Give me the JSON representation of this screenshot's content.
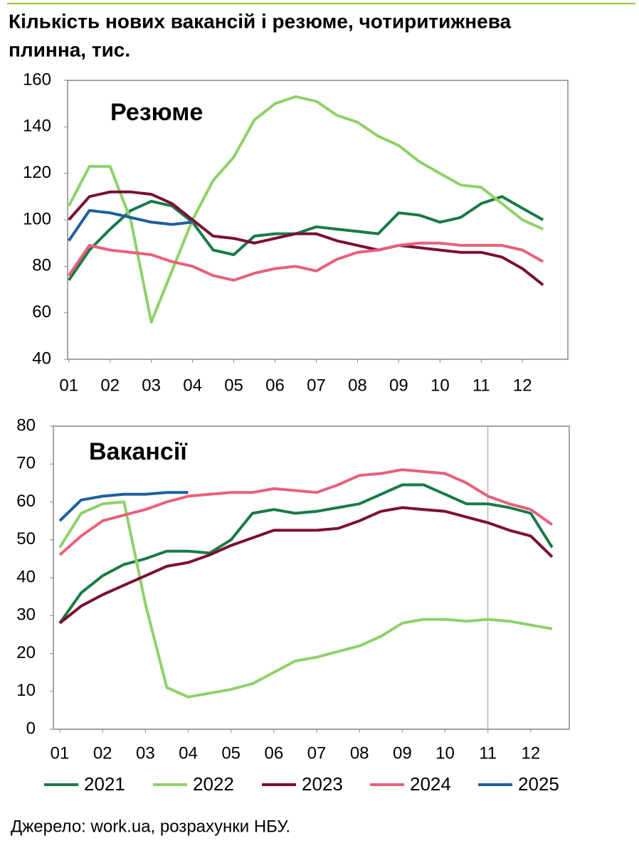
{
  "title_lines": [
    "Кількість нових вакансій і резюме, чотиритижнева",
    "плинна, тис."
  ],
  "source": "Джерело: work.ua, розрахунки НБУ.",
  "chart_data": [
    {
      "type": "line",
      "label": "Резюме",
      "x": [
        1,
        1.5,
        2,
        2.5,
        3,
        3.5,
        4,
        4.5,
        5,
        5.5,
        6,
        6.5,
        7,
        7.5,
        8,
        8.5,
        9,
        9.5,
        10,
        10.5,
        11,
        11.5,
        12,
        12.5
      ],
      "xlim": [
        0.97,
        13.1
      ],
      "xticks": [
        {
          "value": 1,
          "label": "01"
        },
        {
          "value": 2,
          "label": "02"
        },
        {
          "value": 3,
          "label": "03"
        },
        {
          "value": 4,
          "label": "04"
        },
        {
          "value": 5,
          "label": "05"
        },
        {
          "value": 6,
          "label": "06"
        },
        {
          "value": 7,
          "label": "07"
        },
        {
          "value": 8,
          "label": "08"
        },
        {
          "value": 9,
          "label": "09"
        },
        {
          "value": 10,
          "label": "10"
        },
        {
          "value": 11,
          "label": "11"
        },
        {
          "value": 12,
          "label": "12"
        }
      ],
      "ylim": [
        40,
        160
      ],
      "yticks": [
        40,
        60,
        80,
        100,
        120,
        140,
        160
      ],
      "series": [
        {
          "name": "2021",
          "color": "#1a7a45",
          "values": [
            74,
            87,
            96,
            104,
            108,
            106,
            99,
            87,
            85,
            93,
            94,
            94,
            97,
            96,
            95,
            94,
            103,
            102,
            99,
            101,
            107,
            110,
            105,
            100
          ]
        },
        {
          "name": "2022",
          "color": "#8fd16a",
          "values": [
            106,
            123,
            123,
            100,
            56,
            78,
            100,
            117,
            127,
            143,
            150,
            153,
            151,
            145,
            142,
            136,
            132,
            125,
            120,
            115,
            114,
            107,
            100,
            96
          ]
        },
        {
          "name": "2023",
          "color": "#7a0f35",
          "values": [
            100,
            110,
            112,
            112,
            111,
            107,
            100,
            93,
            92,
            90,
            92,
            94,
            94,
            91,
            89,
            87,
            89,
            88,
            87,
            86,
            86,
            84,
            79,
            72
          ]
        },
        {
          "name": "2024",
          "color": "#e8607a",
          "values": [
            76,
            89,
            87,
            86,
            85,
            82,
            80,
            76,
            74,
            77,
            79,
            80,
            78,
            83,
            86,
            87,
            89,
            90,
            90,
            89,
            89,
            89,
            87,
            82
          ]
        },
        {
          "name": "2025",
          "color": "#1f5f9e",
          "values": [
            91,
            104,
            103,
            101,
            99,
            98,
            99,
            null,
            null,
            null,
            null,
            null,
            null,
            null,
            null,
            null,
            null,
            null,
            null,
            null,
            null,
            null,
            null,
            null
          ]
        }
      ]
    },
    {
      "type": "line",
      "label": "Вакансії",
      "x": [
        1,
        1.5,
        2,
        2.5,
        3,
        3.5,
        4,
        4.5,
        5,
        5.5,
        6,
        6.5,
        7,
        7.5,
        8,
        8.5,
        9,
        9.5,
        10,
        10.5,
        11,
        11.5,
        12,
        12.5
      ],
      "xlim": [
        0.85,
        12.9
      ],
      "xticks": [
        {
          "value": 1,
          "label": "01"
        },
        {
          "value": 2,
          "label": "02"
        },
        {
          "value": 3,
          "label": "03"
        },
        {
          "value": 4,
          "label": "04"
        },
        {
          "value": 5,
          "label": "05"
        },
        {
          "value": 6,
          "label": "06"
        },
        {
          "value": 7,
          "label": "07"
        },
        {
          "value": 8,
          "label": "08"
        },
        {
          "value": 9,
          "label": "09"
        },
        {
          "value": 10,
          "label": "10"
        },
        {
          "value": 11,
          "label": "11"
        },
        {
          "value": 12,
          "label": "12"
        }
      ],
      "ylim": [
        0,
        80
      ],
      "yticks": [
        0,
        10,
        20,
        30,
        40,
        50,
        60,
        70,
        80
      ],
      "vline": 11,
      "series": [
        {
          "color": "#1a7a45",
          "values": [
            28,
            36,
            40.5,
            43.5,
            45,
            47,
            47,
            46.5,
            50,
            57,
            58,
            57,
            57.5,
            58.5,
            59.5,
            62,
            64.5,
            64.5,
            62,
            59.5,
            59.5,
            58.5,
            57,
            48
          ]
        },
        {
          "color": "#8fd16a",
          "values": [
            48,
            57,
            59.5,
            60,
            33,
            11,
            8.5,
            9.5,
            10.5,
            12,
            15,
            18,
            19,
            20.5,
            22,
            24.5,
            28,
            29,
            29,
            28.5,
            29,
            28.5,
            27.5,
            26.5
          ]
        },
        {
          "color": "#7a0f35",
          "values": [
            28,
            32.5,
            35.5,
            38,
            40.5,
            43,
            44,
            46,
            48.5,
            50.5,
            52.5,
            52.5,
            52.5,
            53,
            55,
            57.5,
            58.5,
            58,
            57.5,
            56,
            54.5,
            52.5,
            51,
            45.5
          ]
        },
        {
          "color": "#e8607a",
          "values": [
            46,
            51,
            55,
            56.5,
            58,
            60,
            61.5,
            62,
            62.5,
            62.5,
            63.5,
            63,
            62.5,
            64.5,
            67,
            67.5,
            68.5,
            68,
            67.5,
            65,
            61.5,
            59.5,
            58,
            54
          ]
        },
        {
          "color": "#1f5f9e",
          "values": [
            55,
            60.5,
            61.5,
            62,
            62,
            62.5,
            62.5,
            null,
            null,
            null,
            null,
            null,
            null,
            null,
            null,
            null,
            null,
            null,
            null,
            null,
            null,
            null,
            null,
            null
          ]
        }
      ]
    }
  ]
}
